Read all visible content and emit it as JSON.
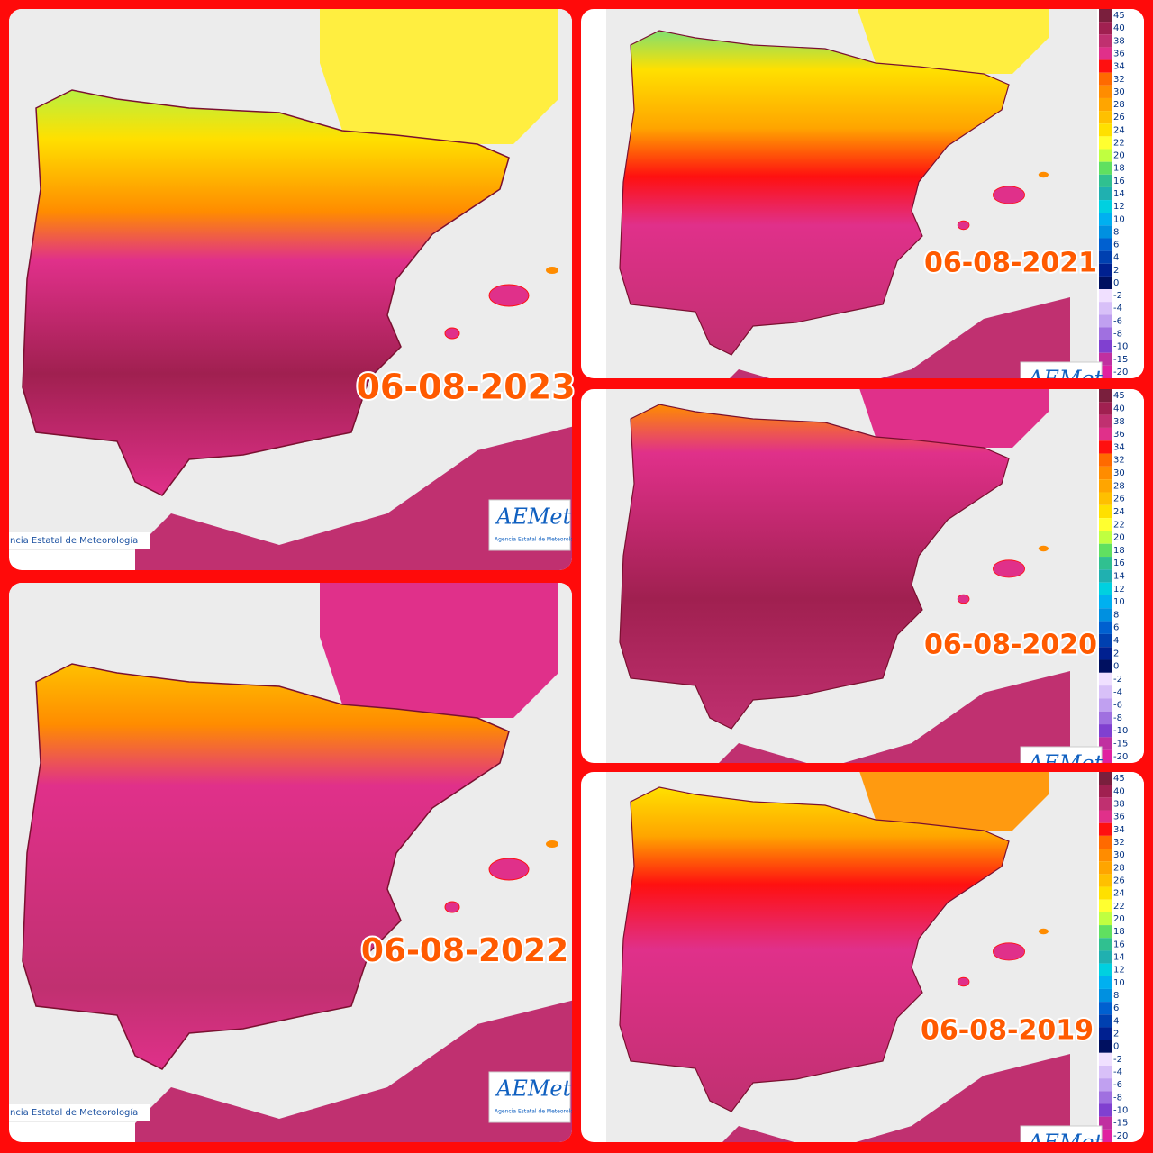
{
  "panels": [
    {
      "date": "06-08-2023"
    },
    {
      "date": "06-08-2021"
    },
    {
      "date": "06-08-2020"
    },
    {
      "date": "06-08-2022"
    },
    {
      "date": "06-08-2019"
    }
  ],
  "logo": {
    "name": "AEMet",
    "subtitle": "Agencia Estatal de Meteorología"
  },
  "credit": "ncia Estatal de Meteorología",
  "legend": {
    "labels": [
      45,
      40,
      38,
      36,
      34,
      32,
      30,
      28,
      26,
      24,
      22,
      20,
      18,
      16,
      14,
      12,
      10,
      8,
      6,
      4,
      2,
      0,
      -2,
      -4,
      -6,
      -8,
      -10,
      -15,
      -20
    ],
    "colors": [
      "#7a1f3d",
      "#a02050",
      "#c03070",
      "#e0308a",
      "#ff1010",
      "#ff6a00",
      "#ff8c00",
      "#ffa500",
      "#ffc000",
      "#ffe000",
      "#ffff30",
      "#c0ff40",
      "#60e060",
      "#30c090",
      "#20b0b0",
      "#00d0e0",
      "#00b0f0",
      "#0090e0",
      "#0060d0",
      "#0040b0",
      "#002090",
      "#001060",
      "#f0e0ff",
      "#d8c0f8",
      "#c0a0f0",
      "#a070e0",
      "#8040d0",
      "#c030a0",
      "#e020a0"
    ]
  }
}
